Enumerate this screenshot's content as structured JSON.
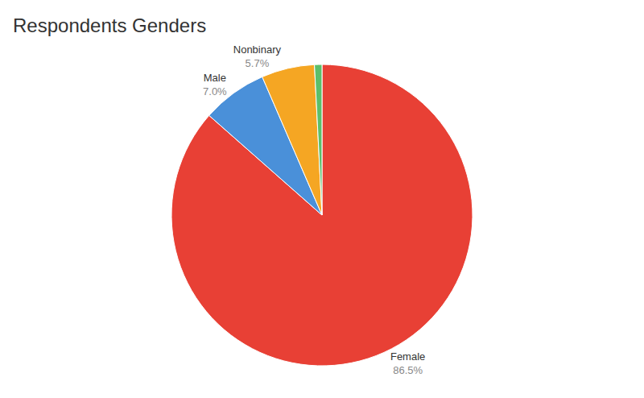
{
  "chart_data": {
    "type": "pie",
    "title": "Respondents Genders",
    "categories": [
      "Female",
      "Male",
      "Nonbinary",
      null
    ],
    "values": [
      86.5,
      7.0,
      5.7,
      0.8
    ],
    "value_labels": [
      "86.5%",
      "7.0%",
      "5.7%",
      null
    ],
    "colors": [
      "#E84035",
      "#4A90D9",
      "#F5A623",
      "#5CBF6A"
    ],
    "data_labels": true
  }
}
